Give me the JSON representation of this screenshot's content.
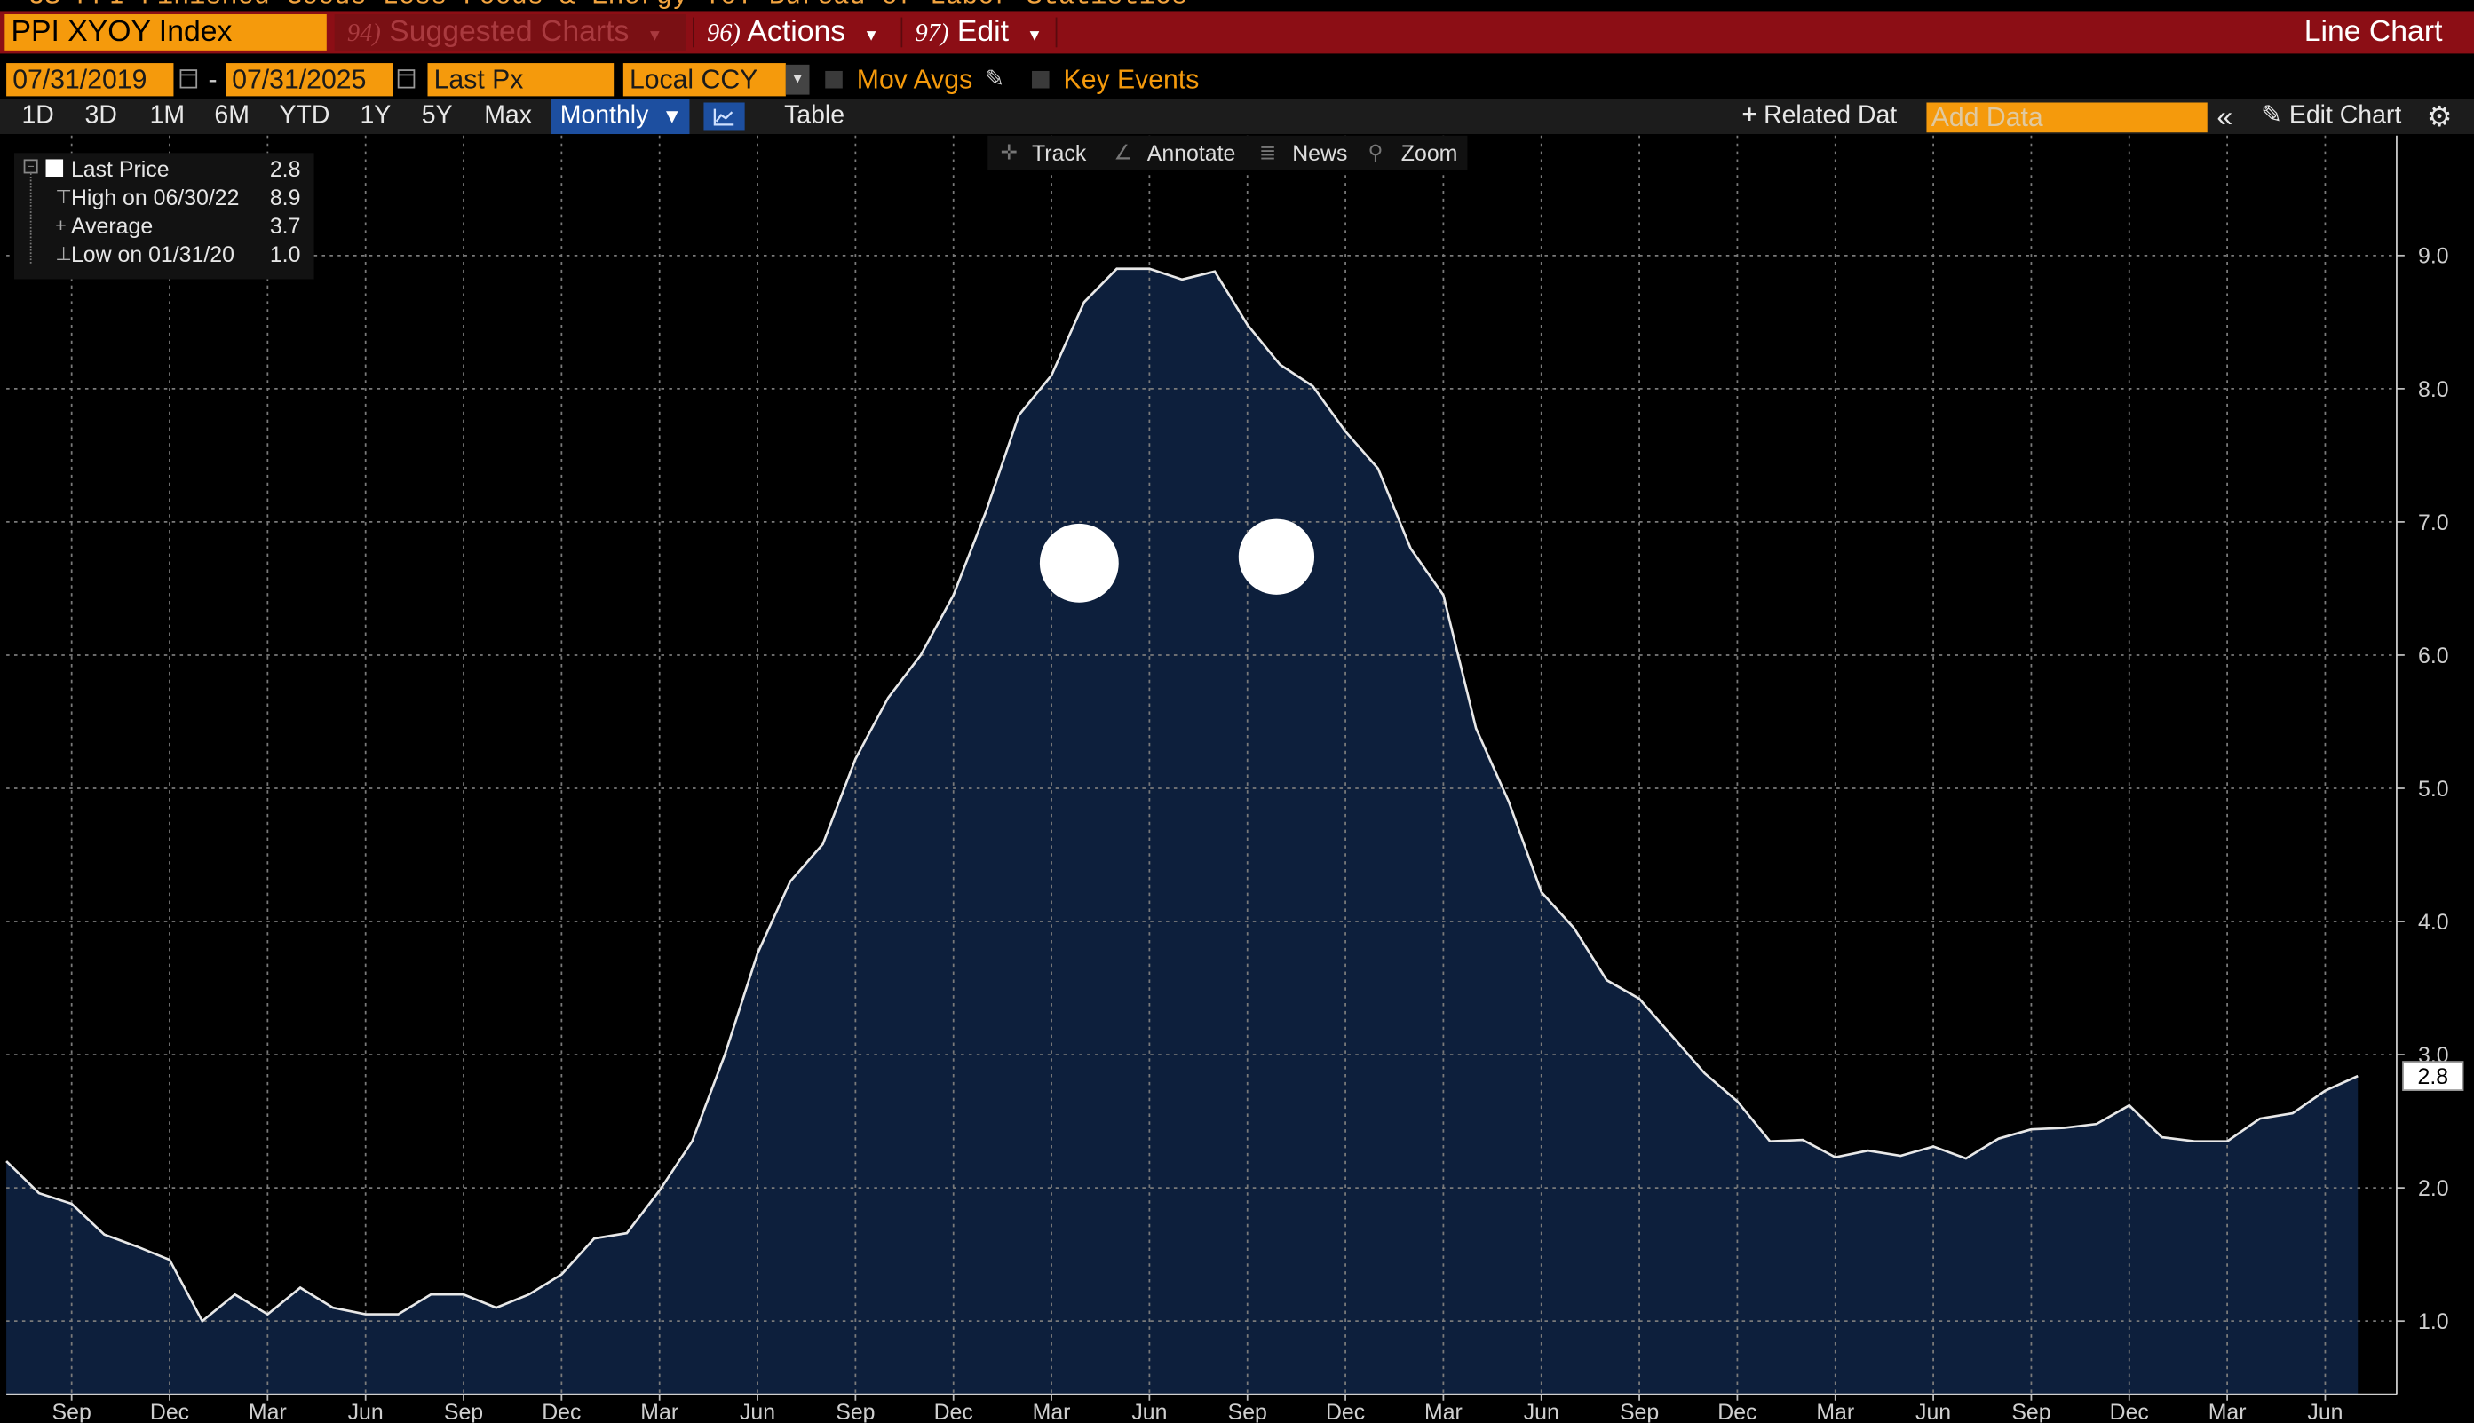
{
  "header": {
    "title": "US PPI Finished Goods Less Foods & Energy YoY Bureau of Labor Statistics",
    "ticker": "PPI XYOY Index",
    "suggested": {
      "num": "94)",
      "label": "Suggested Charts"
    },
    "actions": {
      "num": "96)",
      "label": "Actions"
    },
    "edit": {
      "num": "97)",
      "label": "Edit"
    },
    "chart_type": "Line Chart"
  },
  "options": {
    "start_date": "07/31/2019",
    "dash": "-",
    "end_date": "07/31/2025",
    "field": "Last Px",
    "currency": "Local CCY",
    "mov_avgs": "Mov Avgs",
    "key_events": "Key Events"
  },
  "timeframes": [
    "1D",
    "3D",
    "1M",
    "6M",
    "YTD",
    "1Y",
    "5Y",
    "Max"
  ],
  "periodicity": "Monthly",
  "table_label": "Table",
  "related_data": "Related Dat",
  "add_data_placeholder": "Add Data",
  "edit_chart": "Edit Chart",
  "chart_tools": [
    "Track",
    "Annotate",
    "News",
    "Zoom"
  ],
  "legend": {
    "last_price": {
      "label": "Last Price",
      "value": "2.8"
    },
    "high": {
      "label": "High on 06/30/22",
      "value": "8.9"
    },
    "average": {
      "label": "Average",
      "value": "3.7"
    },
    "low": {
      "label": "Low on 01/31/20",
      "value": "1.0"
    }
  },
  "colors": {
    "accent_orange": "#f59a0c",
    "header_red": "#8c0e15",
    "area_fill": "#0d1f3c",
    "line": "#e8e8e8",
    "grid": "#7a7a7a"
  },
  "chart_data": {
    "type": "area",
    "start": "2019-07",
    "frequency": "monthly",
    "values": [
      2.2,
      1.96,
      1.88,
      1.65,
      1.56,
      1.46,
      1.0,
      1.2,
      1.05,
      1.25,
      1.1,
      1.05,
      1.05,
      1.2,
      1.2,
      1.1,
      1.2,
      1.35,
      1.62,
      1.66,
      1.98,
      2.35,
      3.0,
      3.76,
      4.3,
      4.58,
      5.22,
      5.68,
      6.0,
      6.45,
      7.08,
      7.8,
      8.1,
      8.65,
      8.9,
      8.9,
      8.82,
      8.88,
      8.48,
      8.18,
      8.02,
      7.68,
      7.4,
      6.8,
      6.45,
      5.45,
      4.9,
      4.22,
      3.95,
      3.56,
      3.42,
      3.14,
      2.86,
      2.65,
      2.35,
      2.36,
      2.23,
      2.28,
      2.24,
      2.31,
      2.22,
      2.37,
      2.44,
      2.45,
      2.48,
      2.62,
      2.38,
      2.35,
      2.35,
      2.52,
      2.56,
      2.73,
      2.84
    ],
    "x_tick_labels": [
      "Sep",
      "Dec",
      "Mar",
      "Jun",
      "Sep",
      "Dec",
      "Mar",
      "Jun",
      "Sep",
      "Dec",
      "Mar",
      "Jun",
      "Sep",
      "Dec",
      "Mar",
      "Jun",
      "Sep",
      "Dec",
      "Mar",
      "Jun",
      "Sep",
      "Dec",
      "Mar",
      "Jun"
    ],
    "y_ticks": [
      "1.0",
      "2.0",
      "3.0",
      "4.0",
      "5.0",
      "6.0",
      "7.0",
      "8.0",
      "9.0"
    ],
    "y_range": [
      0.45,
      9.9
    ],
    "last_value_label": "2.8",
    "grid": true,
    "y_axis_side": "right"
  }
}
